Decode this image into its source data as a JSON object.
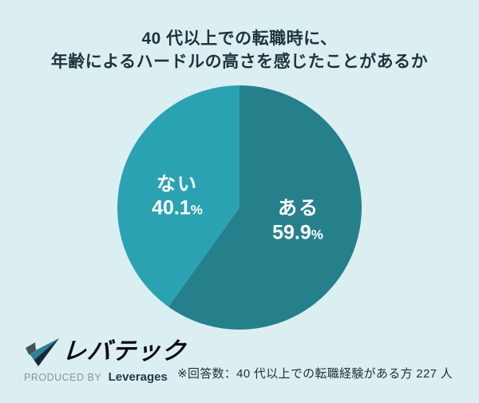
{
  "title": {
    "line1": "40 代以上での転職時に、",
    "line2": "年齢によるハードルの高さを感じたことがあるか"
  },
  "chart_data": {
    "type": "pie",
    "title": "40 代以上での転職時に、年齢によるハードルの高さを感じたことがあるか",
    "start_angle_deg": -90,
    "direction": "clockwise",
    "slices": [
      {
        "label": "ある",
        "value": 59.9,
        "value_label": "59.9",
        "unit": "%",
        "color": "#26808c"
      },
      {
        "label": "ない",
        "value": 40.1,
        "value_label": "40.1",
        "unit": "%",
        "color": "#2ba2b2"
      }
    ],
    "label_color": "#ffffff",
    "legend": "none"
  },
  "logo": {
    "brand": "レバテック",
    "produced_by": "PRODUCED BY",
    "company": "Leverages",
    "mark": "check-mark-icon"
  },
  "footnote": "※回答数：40 代以上での転職経験がある方 227 人",
  "colors": {
    "background": "#dbeff3",
    "title_text": "#1e343d",
    "slice_dark": "#26808c",
    "slice_light": "#2ba2b2",
    "logo_navy": "#17293a",
    "logo_teal": "#2e8396"
  }
}
